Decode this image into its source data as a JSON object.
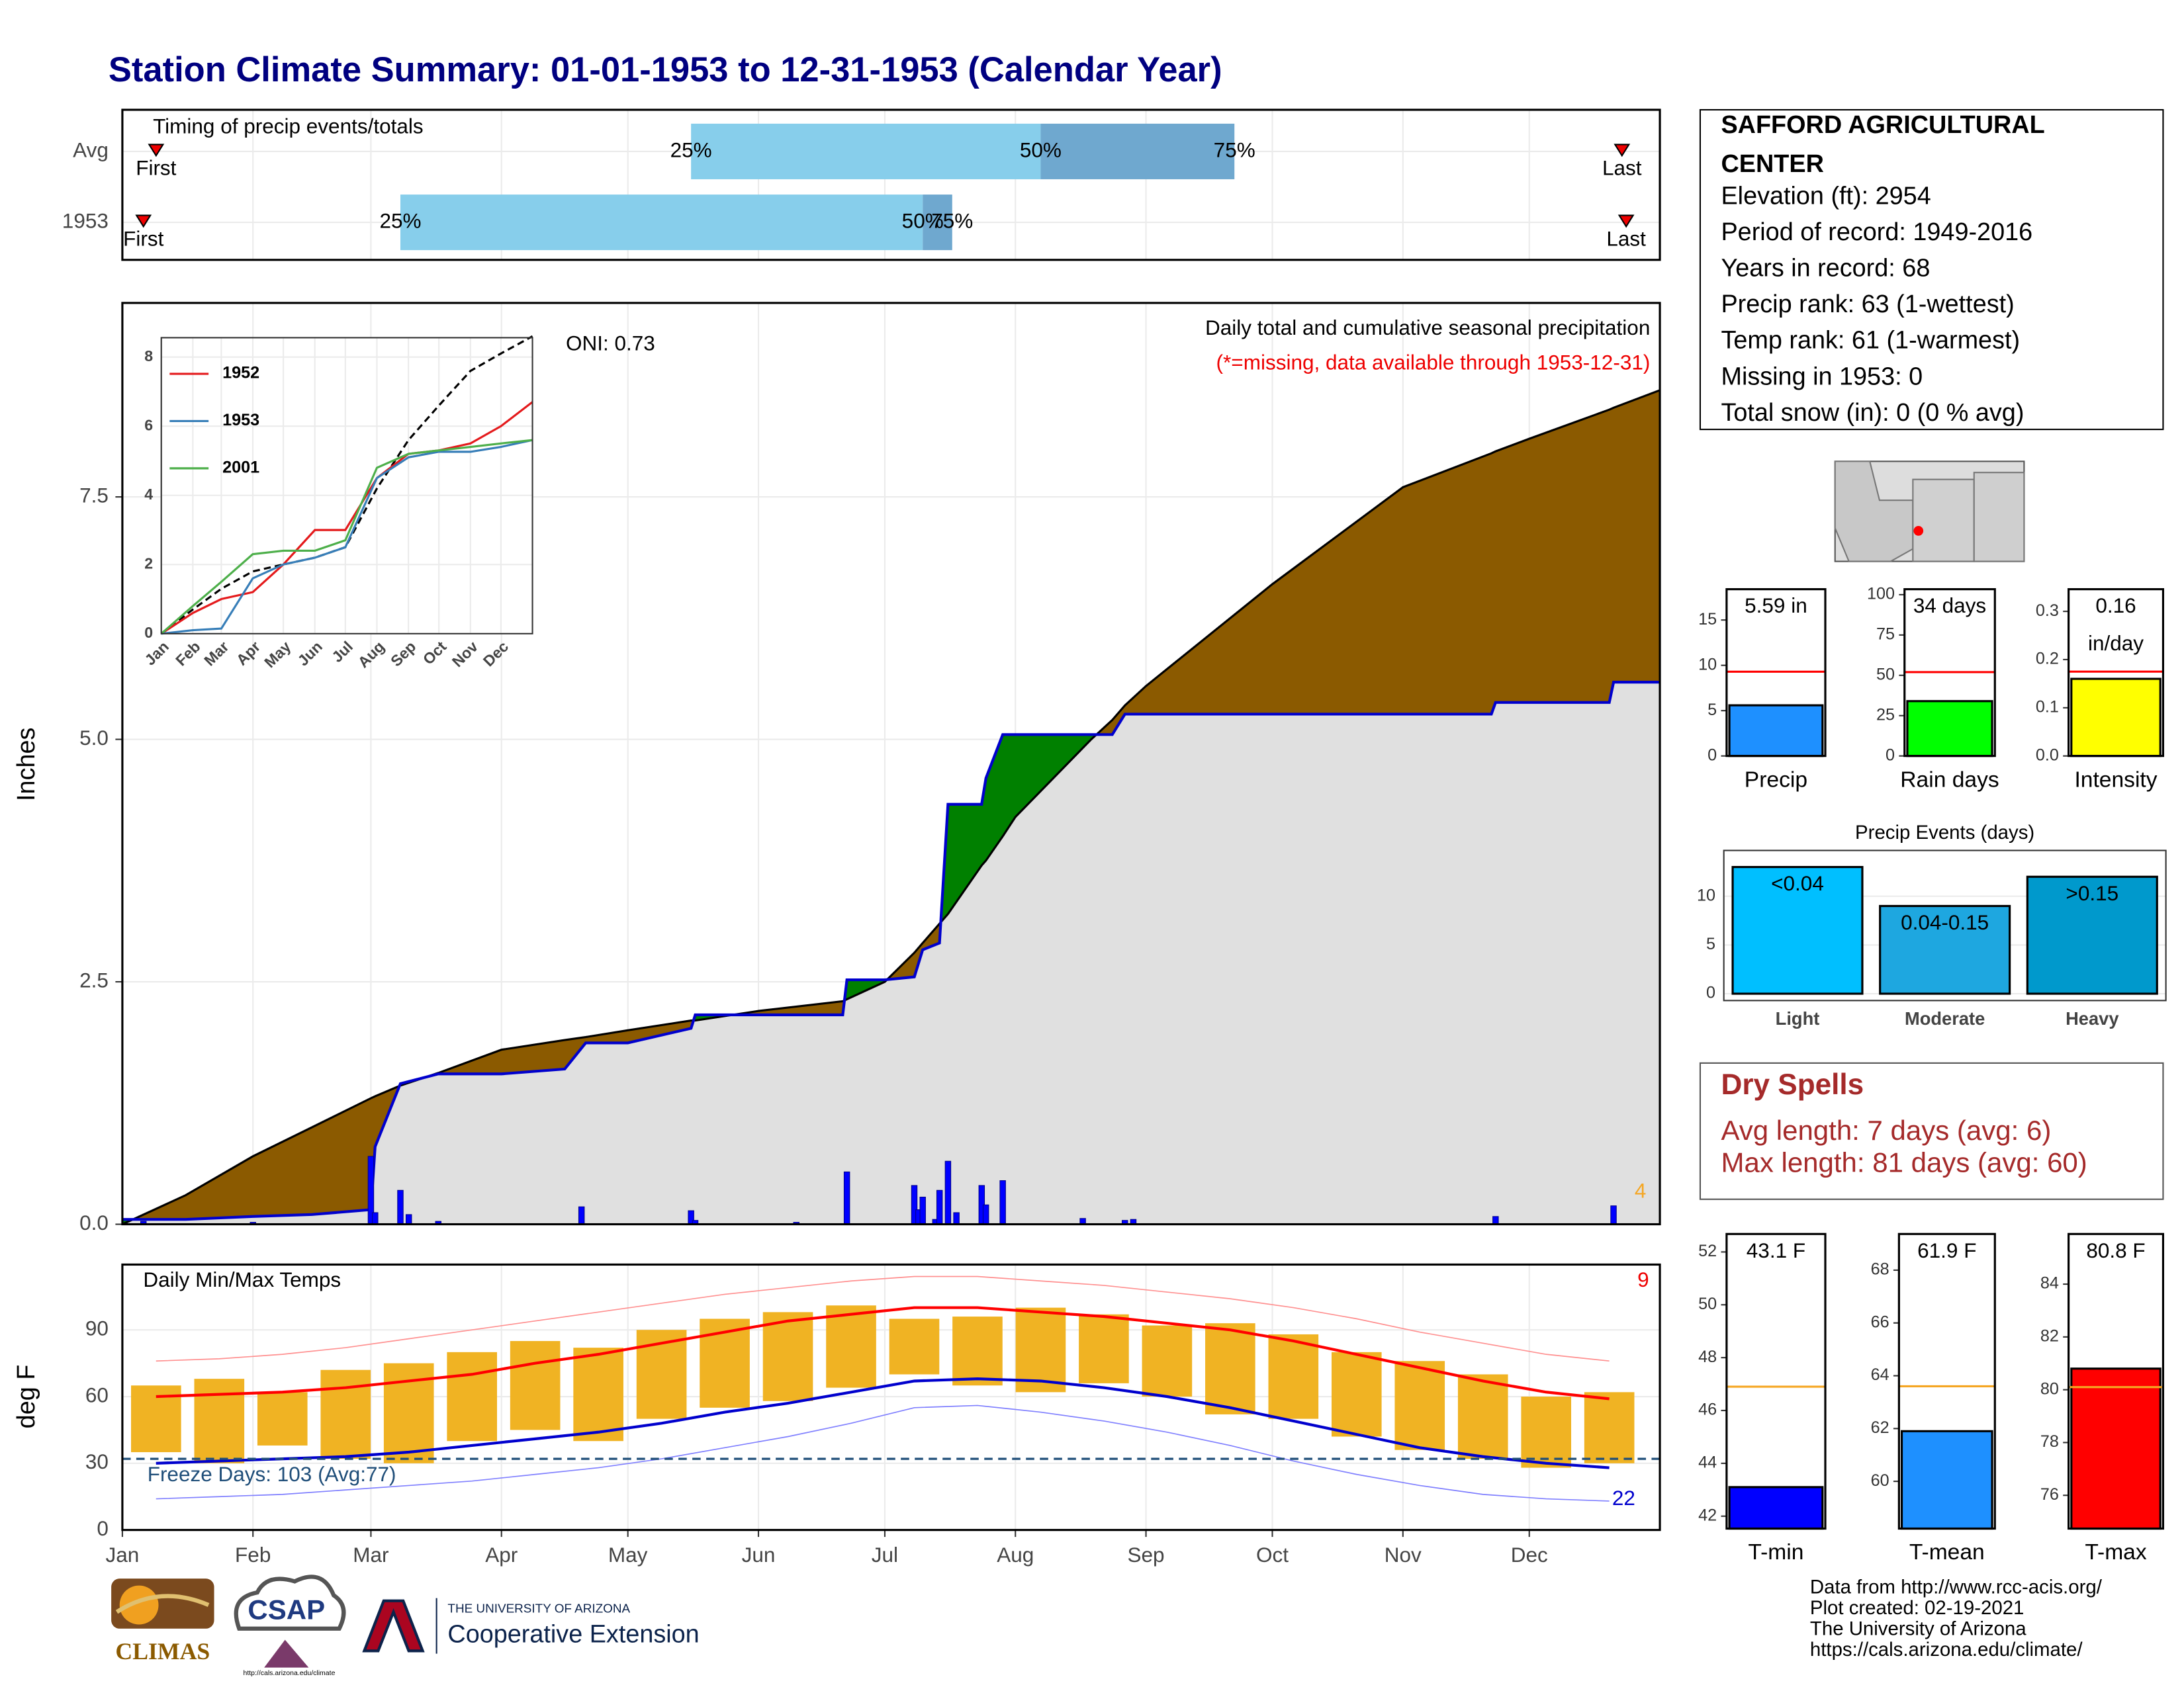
{
  "title": "Station Climate Summary: 01-01-1953 to 12-31-1953 (Calendar Year)",
  "station": {
    "name_lines": [
      "SAFFORD AGRICULTURAL",
      "CENTER"
    ],
    "lines": [
      "Elevation (ft): 2954",
      "Period of record: 1949-2016",
      "Years in record: 68",
      "Precip rank: 63 (1-wettest)",
      "Temp rank: 61 (1-warmest)",
      "Missing in 1953: 0",
      "Total snow (in): 0 (0 % avg)"
    ]
  },
  "dry_spells": {
    "title": "Dry Spells",
    "lines": [
      "Avg length: 7 days (avg: 6)",
      "Max length: 81 days (avg: 60)"
    ]
  },
  "footer": [
    "Data from http://www.rcc-acis.org/",
    "Plot created: 02-19-2021",
    "The University of Arizona",
    "https://cals.arizona.edu/climate/"
  ],
  "logos": {
    "climas": "CLIMAS",
    "csap": "CSAP",
    "csap_url": "http://cals.arizona.edu/climate",
    "ua_top": "THE UNIVERSITY OF ARIZONA",
    "ua_name": "Cooperative Extension"
  },
  "chart_data": [
    {
      "type": "timing",
      "subtitle": "Timing of precip events/totals",
      "rows": [
        "Avg",
        "1953"
      ],
      "xlim": [
        0,
        365
      ],
      "first": [
        8,
        5
      ],
      "last": [
        356,
        357
      ],
      "first_label": "First",
      "last_label": "Last",
      "p25": [
        135,
        66
      ],
      "p50": [
        218,
        190
      ],
      "p75": [
        264,
        197
      ],
      "p_labels": [
        "25%",
        "50%",
        "75%"
      ],
      "colors": [
        "#87ceeb",
        "#6fa8cf"
      ]
    },
    {
      "type": "cumulative",
      "title": "Daily total and cumulative seasonal precipitation",
      "note": "(*=missing, data available through 1953-12-31)",
      "annotation": "ONI: 0.73",
      "corner_label": "4",
      "y_label": "Inches",
      "xlim": [
        0,
        365
      ],
      "ylim": [
        0,
        9.5
      ],
      "yticks": [
        {
          "value": 0,
          "label": "0.0"
        },
        {
          "value": 2.5,
          "label": "2.5"
        },
        {
          "value": 5,
          "label": "5.0"
        },
        {
          "value": 7.5,
          "label": "7.5"
        }
      ],
      "x": [
        0,
        15,
        31,
        45,
        59,
        60,
        66,
        75,
        90,
        105,
        110,
        120,
        135,
        136,
        151,
        171,
        172,
        181,
        188,
        190,
        194,
        196,
        204,
        205,
        209,
        212,
        230,
        235,
        238,
        243,
        273,
        304,
        325,
        326,
        334,
        353,
        354,
        365
      ],
      "series": [
        {
          "color": "#8b5a00",
          "values": [
            0,
            0.3,
            0.7,
            1.0,
            1.3,
            1.32,
            1.43,
            1.56,
            1.8,
            1.9,
            1.93,
            2.0,
            2.1,
            2.1,
            2.2,
            2.3,
            2.32,
            2.5,
            2.8,
            2.9,
            3.1,
            3.2,
            3.7,
            3.75,
            4.0,
            4.2,
            5.0,
            5.2,
            5.35,
            5.55,
            6.6,
            7.6,
            7.95,
            7.97,
            8.1,
            8.4,
            8.42,
            8.6
          ]
        },
        {
          "color": "#0000cd",
          "values": [
            0.05,
            0.05,
            0.08,
            0.1,
            0.15,
            0.8,
            1.45,
            1.55,
            1.55,
            1.6,
            1.87,
            1.87,
            2.02,
            2.16,
            2.16,
            2.16,
            2.52,
            2.52,
            2.55,
            2.83,
            2.9,
            4.33,
            4.33,
            4.6,
            5.05,
            5.05,
            5.05,
            5.05,
            5.26,
            5.26,
            5.26,
            5.26,
            5.26,
            5.38,
            5.38,
            5.38,
            5.59,
            5.59
          ]
        }
      ],
      "above_color": "#008000",
      "below_color": "#e0e0e0",
      "daily": {
        "color": "#0000ff",
        "x": [
          5,
          31,
          59,
          60,
          66,
          68,
          75,
          109,
          135,
          136,
          160,
          172,
          188,
          189,
          190,
          193,
          194,
          196,
          198,
          204,
          205,
          209,
          228,
          238,
          240,
          326,
          354
        ],
        "values": [
          0.03,
          0.02,
          0.7,
          0.12,
          0.35,
          0.1,
          0.03,
          0.18,
          0.14,
          0.04,
          0.02,
          0.54,
          0.4,
          0.15,
          0.28,
          0.05,
          0.35,
          0.65,
          0.12,
          0.4,
          0.2,
          0.45,
          0.06,
          0.04,
          0.05,
          0.08,
          0.19
        ]
      }
    },
    {
      "type": "inset",
      "xlim": [
        0,
        365
      ],
      "ylim": [
        0,
        8.56
      ],
      "yticks": [
        0,
        2,
        4,
        6,
        8
      ],
      "xticks": [
        {
          "value": 0,
          "label": "Jan"
        },
        {
          "value": 31,
          "label": "Feb"
        },
        {
          "value": 59,
          "label": "Mar"
        },
        {
          "value": 90,
          "label": "Apr"
        },
        {
          "value": 120,
          "label": "May"
        },
        {
          "value": 151,
          "label": "Jun"
        },
        {
          "value": 181,
          "label": "Jul"
        },
        {
          "value": 212,
          "label": "Aug"
        },
        {
          "value": 243,
          "label": "Sep"
        },
        {
          "value": 273,
          "label": "Oct"
        },
        {
          "value": 304,
          "label": "Nov"
        },
        {
          "value": 334,
          "label": "Dec"
        }
      ],
      "x": [
        0,
        31,
        59,
        90,
        120,
        151,
        181,
        212,
        243,
        273,
        304,
        334,
        365
      ],
      "series": [
        {
          "color": "#000000",
          "dash": true,
          "values": [
            0,
            0.7,
            1.3,
            1.8,
            2.0,
            2.2,
            2.5,
            4.2,
            5.6,
            6.6,
            7.6,
            8.1,
            8.6
          ]
        },
        {
          "name": "1952",
          "color": "#e41a1c",
          "values": [
            0,
            0.6,
            1.0,
            1.2,
            2.0,
            3.0,
            3.0,
            4.5,
            5.2,
            5.3,
            5.5,
            6.0,
            6.7
          ]
        },
        {
          "name": "1953",
          "color": "#377eb8",
          "values": [
            0,
            0.1,
            0.15,
            1.6,
            2.0,
            2.2,
            2.5,
            4.5,
            5.1,
            5.26,
            5.26,
            5.4,
            5.6
          ]
        },
        {
          "name": "2001",
          "color": "#4daf4a",
          "values": [
            0,
            0.8,
            1.5,
            2.3,
            2.4,
            2.4,
            2.7,
            4.8,
            5.2,
            5.3,
            5.4,
            5.5,
            5.6
          ]
        }
      ]
    },
    {
      "type": "temps",
      "title": "Daily Min/Max Temps",
      "y_label": "deg F",
      "annotation": "Freeze Days: 103 (Avg:77)",
      "high_count": "9",
      "low_count": "22",
      "xlim": [
        0,
        365
      ],
      "ylim": [
        0,
        119.4
      ],
      "yticks": [
        0,
        30,
        60,
        90
      ],
      "xticks": [
        {
          "value": 0,
          "label": "Jan"
        },
        {
          "value": 31,
          "label": "Feb"
        },
        {
          "value": 59,
          "label": "Mar"
        },
        {
          "value": 90,
          "label": "Apr"
        },
        {
          "value": 120,
          "label": "May"
        },
        {
          "value": 151,
          "label": "Jun"
        },
        {
          "value": 181,
          "label": "Jul"
        },
        {
          "value": 212,
          "label": "Aug"
        },
        {
          "value": 243,
          "label": "Sep"
        },
        {
          "value": 273,
          "label": "Oct"
        },
        {
          "value": 304,
          "label": "Nov"
        },
        {
          "value": 334,
          "label": "Dec"
        }
      ],
      "x": [
        8,
        23,
        38,
        53,
        68,
        83,
        98,
        113,
        128,
        143,
        158,
        173,
        188,
        203,
        218,
        233,
        248,
        263,
        278,
        293,
        308,
        323,
        338,
        353
      ],
      "range": {
        "color": "#f0b323",
        "low": [
          35,
          30,
          38,
          32,
          30,
          40,
          45,
          40,
          50,
          55,
          58,
          64,
          70,
          65,
          62,
          66,
          60,
          52,
          50,
          42,
          36,
          32,
          28,
          30
        ],
        "high": [
          65,
          68,
          62,
          72,
          75,
          80,
          85,
          82,
          90,
          95,
          98,
          101,
          95,
          96,
          100,
          97,
          92,
          93,
          88,
          80,
          76,
          70,
          60,
          62
        ]
      },
      "series": [
        {
          "color": "#ff9090",
          "width": 0.8,
          "values": [
            76,
            77,
            79,
            82,
            86,
            90,
            94,
            98,
            102,
            106,
            109,
            112,
            114,
            114,
            112,
            110,
            107,
            104,
            100,
            95,
            89,
            84,
            79,
            76
          ]
        },
        {
          "color": "#8080ff",
          "width": 0.8,
          "values": [
            14,
            15,
            16,
            18,
            20,
            22,
            25,
            28,
            32,
            37,
            42,
            48,
            55,
            56,
            53,
            49,
            44,
            38,
            31,
            25,
            20,
            16,
            14,
            13
          ]
        },
        {
          "color": "#ff0000",
          "width": 2,
          "values": [
            60,
            61,
            62,
            64,
            67,
            70,
            75,
            79,
            84,
            89,
            94,
            97,
            100,
            100,
            98,
            96,
            93,
            90,
            85,
            79,
            73,
            67,
            62,
            59
          ]
        },
        {
          "color": "#0000cd",
          "width": 2,
          "values": [
            30,
            31,
            32,
            33,
            35,
            38,
            41,
            44,
            48,
            53,
            57,
            62,
            67,
            68,
            67,
            64,
            60,
            55,
            49,
            43,
            37,
            33,
            30,
            28
          ]
        }
      ],
      "freeze": 32,
      "freeze_color": "#1f4e79"
    },
    {
      "type": "summary",
      "category": "Precip",
      "values": [
        5.59
      ],
      "value_labels": [
        "5.59 in"
      ],
      "average": 9.3,
      "color": "#1e90ff",
      "avg_color": "#ff0000",
      "ylim": [
        0,
        18.4
      ],
      "yticks": [
        0,
        5,
        10,
        15
      ]
    },
    {
      "type": "summary",
      "category": "Rain days",
      "values": [
        34
      ],
      "value_labels": [
        "34 days"
      ],
      "average": 52,
      "color": "#00ff00",
      "avg_color": "#ff0000",
      "ylim": [
        0,
        103.4
      ],
      "yticks": [
        0,
        25,
        50,
        75,
        100
      ]
    },
    {
      "type": "summary",
      "category": "Intensity",
      "values": [
        0.16
      ],
      "value_labels": [
        "0.16"
      ],
      "unit_label": "in/day",
      "average": 0.175,
      "color": "#ffff00",
      "avg_color": "#ff0000",
      "ylim": [
        0,
        0.346
      ],
      "yticks": [
        {
          "value": 0,
          "label": "0.0"
        },
        {
          "value": 0.1,
          "label": "0.1"
        },
        {
          "value": 0.2,
          "label": "0.2"
        },
        {
          "value": 0.3,
          "label": "0.3"
        }
      ]
    },
    {
      "type": "bar",
      "title": "Precip Events (days)",
      "categories": [
        "Light",
        "Moderate",
        "Heavy"
      ],
      "values": [
        13,
        9,
        12
      ],
      "value_labels": [
        "<0.04",
        "0.04-0.15",
        ">0.15"
      ],
      "colors": [
        "#00bfff",
        "#1ea7e0",
        "#0099cc"
      ],
      "ylim": [
        -0.7,
        14.7
      ],
      "yticks": [
        0,
        5,
        10
      ]
    },
    {
      "type": "summary",
      "category": "T-min",
      "values": [
        43.1
      ],
      "value_labels": [
        "43.1 F"
      ],
      "average": 46.9,
      "color": "#0000ff",
      "avg_color": "#f5a623",
      "ylim": [
        41.53,
        52.68
      ],
      "yticks": [
        42,
        44,
        46,
        48,
        50,
        52
      ]
    },
    {
      "type": "summary",
      "category": "T-mean",
      "values": [
        61.9
      ],
      "value_labels": [
        "61.9 F"
      ],
      "average": 63.6,
      "color": "#1e90ff",
      "avg_color": "#f5a623",
      "ylim": [
        58.21,
        69.37
      ],
      "yticks": [
        60,
        62,
        64,
        66,
        68
      ]
    },
    {
      "type": "summary",
      "category": "T-max",
      "values": [
        80.8
      ],
      "value_labels": [
        "80.8 F"
      ],
      "average": 80.1,
      "color": "#ff0000",
      "avg_color": "#f5a623",
      "ylim": [
        74.74,
        85.9
      ],
      "yticks": [
        76,
        78,
        80,
        82,
        84
      ]
    }
  ]
}
